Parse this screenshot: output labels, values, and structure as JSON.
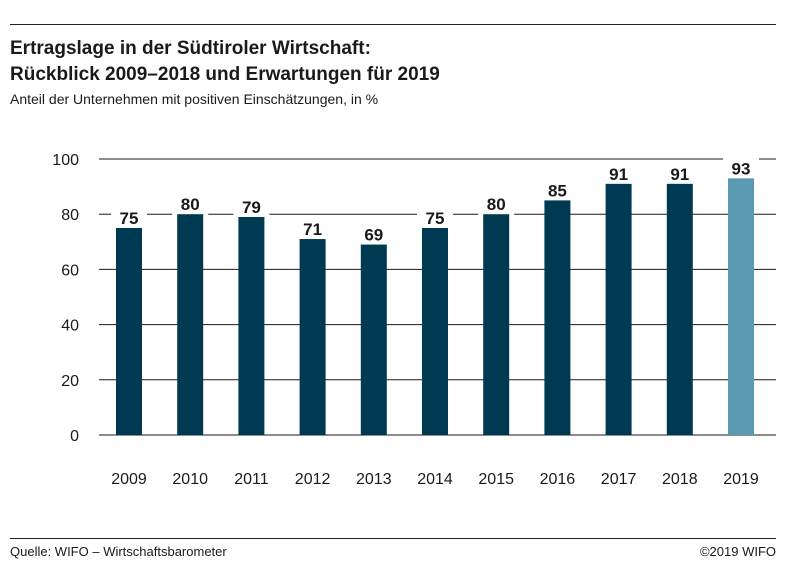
{
  "title_line1": "Ertragslage in der Südtiroler Wirtschaft:",
  "title_line2": "Rückblick 2009–2018 und Erwartungen für 2019",
  "subtitle": "Anteil der Unternehmen mit positiven Einschätzungen, in %",
  "source": "Quelle: WIFO – Wirtschaftsbarometer",
  "copyright": "©2019 WIFO",
  "chart_data": {
    "type": "bar",
    "categories": [
      "2009",
      "2010",
      "2011",
      "2012",
      "2013",
      "2014",
      "2015",
      "2016",
      "2017",
      "2018",
      "2019"
    ],
    "values": [
      75,
      80,
      79,
      71,
      69,
      75,
      80,
      85,
      91,
      91,
      93
    ],
    "ylim": [
      0,
      100
    ],
    "yticks": [
      0,
      20,
      40,
      60,
      80,
      100
    ],
    "grid": true,
    "legend": "none",
    "colors": {
      "actual": "#003a52",
      "forecast": "#5b9bb1",
      "grid": "#1a1a1a",
      "text": "#1a1a1a"
    },
    "highlight_category": "2019"
  }
}
